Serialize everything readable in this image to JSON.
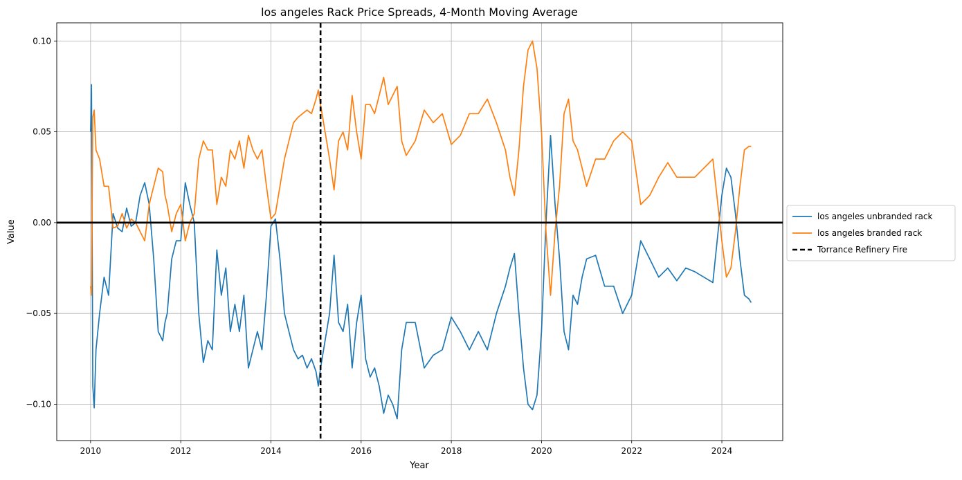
{
  "chart_data": {
    "type": "line",
    "title": "los angeles Rack Price Spreads, 4-Month Moving Average",
    "xlabel": "Year",
    "ylabel": "Value",
    "xlim": [
      2009.25,
      2025.35
    ],
    "ylim": [
      -0.12,
      0.11
    ],
    "x_ticks": [
      2010,
      2012,
      2014,
      2016,
      2018,
      2020,
      2022,
      2024
    ],
    "x_tick_labels": [
      "2010",
      "2012",
      "2014",
      "2016",
      "2018",
      "2020",
      "2022",
      "2024"
    ],
    "y_ticks": [
      -0.1,
      -0.05,
      0.0,
      0.05,
      0.1
    ],
    "y_tick_labels": [
      "−0.10",
      "−0.05",
      "0.00",
      "0.05",
      "0.10"
    ],
    "grid": true,
    "legend_position": "outside-right",
    "reference_lines": [
      {
        "orientation": "horizontal",
        "y": 0.0,
        "color": "#000000",
        "style": "solid"
      },
      {
        "orientation": "vertical",
        "x": 2015.1,
        "color": "#000000",
        "style": "dashed",
        "name": "Torrance Refinery Fire"
      }
    ],
    "series": [
      {
        "name": "los angeles unbranded rack",
        "color": "#1f77b4",
        "x": [
          2010.0,
          2010.02,
          2010.05,
          2010.08,
          2010.12,
          2010.2,
          2010.3,
          2010.4,
          2010.5,
          2010.6,
          2010.7,
          2010.8,
          2010.9,
          2011.0,
          2011.1,
          2011.2,
          2011.3,
          2011.4,
          2011.5,
          2011.6,
          2011.65,
          2011.7,
          2011.8,
          2011.9,
          2012.0,
          2012.1,
          2012.2,
          2012.3,
          2012.4,
          2012.5,
          2012.6,
          2012.7,
          2012.8,
          2012.9,
          2013.0,
          2013.1,
          2013.2,
          2013.3,
          2013.4,
          2013.5,
          2013.6,
          2013.7,
          2013.8,
          2013.9,
          2014.0,
          2014.1,
          2014.2,
          2014.3,
          2014.4,
          2014.5,
          2014.6,
          2014.7,
          2014.8,
          2014.9,
          2015.0,
          2015.05,
          2015.1,
          2015.2,
          2015.3,
          2015.4,
          2015.5,
          2015.6,
          2015.7,
          2015.8,
          2015.9,
          2016.0,
          2016.1,
          2016.2,
          2016.3,
          2016.4,
          2016.5,
          2016.6,
          2016.7,
          2016.8,
          2016.9,
          2017.0,
          2017.2,
          2017.4,
          2017.6,
          2017.8,
          2018.0,
          2018.2,
          2018.4,
          2018.6,
          2018.8,
          2019.0,
          2019.2,
          2019.3,
          2019.4,
          2019.5,
          2019.6,
          2019.7,
          2019.8,
          2019.9,
          2020.0,
          2020.1,
          2020.2,
          2020.3,
          2020.4,
          2020.5,
          2020.6,
          2020.7,
          2020.8,
          2020.9,
          2021.0,
          2021.2,
          2021.4,
          2021.6,
          2021.8,
          2022.0,
          2022.2,
          2022.4,
          2022.6,
          2022.8,
          2023.0,
          2023.2,
          2023.4,
          2023.6,
          2023.8,
          2024.0,
          2024.1,
          2024.2,
          2024.3,
          2024.4,
          2024.5,
          2024.6,
          2024.65
        ],
        "y": [
          0.05,
          0.076,
          -0.09,
          -0.102,
          -0.07,
          -0.05,
          -0.03,
          -0.04,
          0.005,
          -0.003,
          -0.005,
          0.008,
          -0.002,
          0.0,
          0.015,
          0.022,
          0.01,
          -0.02,
          -0.06,
          -0.065,
          -0.055,
          -0.05,
          -0.02,
          -0.01,
          -0.01,
          0.022,
          0.01,
          0.0,
          -0.05,
          -0.077,
          -0.065,
          -0.07,
          -0.015,
          -0.04,
          -0.025,
          -0.06,
          -0.045,
          -0.06,
          -0.04,
          -0.08,
          -0.07,
          -0.06,
          -0.07,
          -0.04,
          -0.002,
          0.002,
          -0.02,
          -0.05,
          -0.06,
          -0.07,
          -0.075,
          -0.073,
          -0.08,
          -0.075,
          -0.082,
          -0.09,
          -0.08,
          -0.065,
          -0.05,
          -0.018,
          -0.055,
          -0.06,
          -0.045,
          -0.08,
          -0.055,
          -0.04,
          -0.075,
          -0.085,
          -0.08,
          -0.09,
          -0.105,
          -0.095,
          -0.1,
          -0.108,
          -0.07,
          -0.055,
          -0.055,
          -0.08,
          -0.073,
          -0.07,
          -0.052,
          -0.06,
          -0.07,
          -0.06,
          -0.07,
          -0.05,
          -0.035,
          -0.025,
          -0.017,
          -0.05,
          -0.08,
          -0.1,
          -0.103,
          -0.095,
          -0.06,
          0.0,
          0.048,
          0.01,
          -0.02,
          -0.06,
          -0.07,
          -0.04,
          -0.045,
          -0.03,
          -0.02,
          -0.018,
          -0.035,
          -0.035,
          -0.05,
          -0.04,
          -0.01,
          -0.02,
          -0.03,
          -0.025,
          -0.032,
          -0.025,
          -0.027,
          -0.03,
          -0.033,
          0.015,
          0.03,
          0.025,
          0.005,
          -0.02,
          -0.04,
          -0.042,
          -0.044
        ]
      },
      {
        "name": "los angeles branded rack",
        "color": "#ff7f0e",
        "x": [
          2010.0,
          2010.02,
          2010.05,
          2010.08,
          2010.12,
          2010.2,
          2010.3,
          2010.4,
          2010.5,
          2010.6,
          2010.7,
          2010.8,
          2010.9,
          2011.0,
          2011.1,
          2011.2,
          2011.3,
          2011.4,
          2011.5,
          2011.6,
          2011.65,
          2011.7,
          2011.8,
          2011.9,
          2012.0,
          2012.1,
          2012.2,
          2012.3,
          2012.4,
          2012.5,
          2012.6,
          2012.7,
          2012.8,
          2012.9,
          2013.0,
          2013.1,
          2013.2,
          2013.3,
          2013.4,
          2013.5,
          2013.6,
          2013.7,
          2013.8,
          2013.9,
          2014.0,
          2014.1,
          2014.2,
          2014.3,
          2014.4,
          2014.5,
          2014.6,
          2014.7,
          2014.8,
          2014.9,
          2015.0,
          2015.05,
          2015.1,
          2015.2,
          2015.3,
          2015.4,
          2015.5,
          2015.6,
          2015.7,
          2015.8,
          2015.9,
          2016.0,
          2016.1,
          2016.2,
          2016.3,
          2016.4,
          2016.5,
          2016.6,
          2016.7,
          2016.8,
          2016.9,
          2017.0,
          2017.2,
          2017.4,
          2017.6,
          2017.8,
          2018.0,
          2018.2,
          2018.4,
          2018.6,
          2018.8,
          2019.0,
          2019.2,
          2019.3,
          2019.4,
          2019.5,
          2019.6,
          2019.7,
          2019.8,
          2019.9,
          2020.0,
          2020.1,
          2020.2,
          2020.3,
          2020.4,
          2020.5,
          2020.6,
          2020.7,
          2020.8,
          2020.9,
          2021.0,
          2021.2,
          2021.4,
          2021.6,
          2021.8,
          2022.0,
          2022.2,
          2022.4,
          2022.6,
          2022.8,
          2023.0,
          2023.2,
          2023.4,
          2023.6,
          2023.8,
          2024.0,
          2024.1,
          2024.2,
          2024.3,
          2024.4,
          2024.5,
          2024.6,
          2024.65
        ],
        "y": [
          -0.035,
          -0.04,
          0.058,
          0.062,
          0.04,
          0.035,
          0.02,
          0.02,
          -0.003,
          -0.002,
          0.005,
          -0.003,
          0.002,
          0.0,
          -0.005,
          -0.01,
          0.01,
          0.02,
          0.03,
          0.028,
          0.015,
          0.01,
          -0.005,
          0.005,
          0.01,
          -0.01,
          0.0,
          0.005,
          0.035,
          0.045,
          0.04,
          0.04,
          0.01,
          0.025,
          0.02,
          0.04,
          0.035,
          0.045,
          0.03,
          0.048,
          0.04,
          0.035,
          0.04,
          0.02,
          0.002,
          0.005,
          0.02,
          0.035,
          0.045,
          0.055,
          0.058,
          0.06,
          0.062,
          0.06,
          0.068,
          0.073,
          0.065,
          0.05,
          0.035,
          0.018,
          0.045,
          0.05,
          0.04,
          0.07,
          0.05,
          0.035,
          0.065,
          0.065,
          0.06,
          0.07,
          0.08,
          0.065,
          0.07,
          0.075,
          0.045,
          0.037,
          0.045,
          0.062,
          0.055,
          0.06,
          0.043,
          0.048,
          0.06,
          0.06,
          0.068,
          0.055,
          0.04,
          0.025,
          0.015,
          0.04,
          0.075,
          0.095,
          0.1,
          0.085,
          0.05,
          -0.005,
          -0.04,
          -0.005,
          0.02,
          0.06,
          0.068,
          0.045,
          0.04,
          0.03,
          0.02,
          0.035,
          0.035,
          0.045,
          0.05,
          0.045,
          0.01,
          0.015,
          0.025,
          0.033,
          0.025,
          0.025,
          0.025,
          0.03,
          0.035,
          -0.01,
          -0.03,
          -0.025,
          -0.005,
          0.02,
          0.04,
          0.042,
          0.042
        ]
      }
    ]
  }
}
